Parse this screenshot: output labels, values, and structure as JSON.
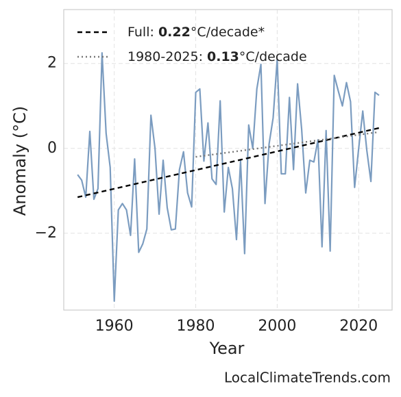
{
  "chart_data": {
    "type": "line",
    "xlabel": "Year",
    "ylabel": "Anomaly (°C)",
    "watermark": "LocalClimateTrends.com",
    "xlim": [
      1947.6,
      2028.2
    ],
    "ylim": [
      -3.81,
      3.27
    ],
    "xticks": [
      1960,
      1980,
      2000,
      2020
    ],
    "yticks": [
      {
        "value": -2,
        "label": "−2"
      },
      0,
      2
    ],
    "grid": true,
    "legend": "upper left",
    "series": [
      {
        "color": "#7b9cc0",
        "x": [
          1951,
          1952,
          1953,
          1954,
          1955,
          1956,
          1957,
          1958,
          1959,
          1960,
          1961,
          1962,
          1963,
          1964,
          1965,
          1966,
          1967,
          1968,
          1969,
          1970,
          1971,
          1972,
          1973,
          1974,
          1975,
          1976,
          1977,
          1978,
          1979,
          1980,
          1981,
          1982,
          1983,
          1984,
          1985,
          1986,
          1987,
          1988,
          1989,
          1990,
          1991,
          1992,
          1993,
          1994,
          1995,
          1996,
          1997,
          1998,
          1999,
          2000,
          2001,
          2002,
          2003,
          2004,
          2005,
          2006,
          2007,
          2008,
          2009,
          2010,
          2011,
          2012,
          2013,
          2014,
          2015,
          2016,
          2017,
          2018,
          2019,
          2020,
          2021,
          2022,
          2023,
          2024,
          2025
        ],
        "values": [
          -0.62,
          -0.75,
          -1.15,
          0.4,
          -1.2,
          -0.95,
          2.25,
          0.35,
          -0.45,
          -3.6,
          -1.45,
          -1.3,
          -1.45,
          -2.05,
          -0.25,
          -2.45,
          -2.25,
          -1.9,
          0.78,
          0.0,
          -1.55,
          -0.28,
          -1.4,
          -1.92,
          -1.9,
          -0.5,
          -0.08,
          -1.05,
          -1.38,
          1.32,
          1.4,
          -0.3,
          0.6,
          -0.72,
          -0.85,
          1.12,
          -1.5,
          -0.45,
          -0.95,
          -2.15,
          -0.3,
          -2.48,
          0.55,
          0.0,
          1.4,
          1.98,
          -1.3,
          0.1,
          0.72,
          2.1,
          -0.6,
          -0.6,
          1.2,
          -0.5,
          1.52,
          0.45,
          -1.05,
          -0.28,
          -0.32,
          0.2,
          -2.32,
          0.42,
          -2.42,
          1.72,
          1.35,
          1.0,
          1.55,
          1.1,
          -0.92,
          0.0,
          0.88,
          -0.05,
          -0.78,
          1.32,
          1.25
        ]
      },
      {
        "name_prefix": "Full: ",
        "slope": 0.22,
        "name_suffix": "°C/decade*",
        "color": "#000000",
        "dash": "7,5",
        "x": [
          1951,
          2025
        ],
        "values": [
          -1.15,
          0.48
        ]
      },
      {
        "name_prefix": "1980-2025: ",
        "slope": 0.13,
        "name_suffix": "°C/decade",
        "color": "#777777",
        "dash": "2,4",
        "x": [
          1980,
          2025
        ],
        "values": [
          -0.2,
          0.385
        ]
      }
    ]
  }
}
